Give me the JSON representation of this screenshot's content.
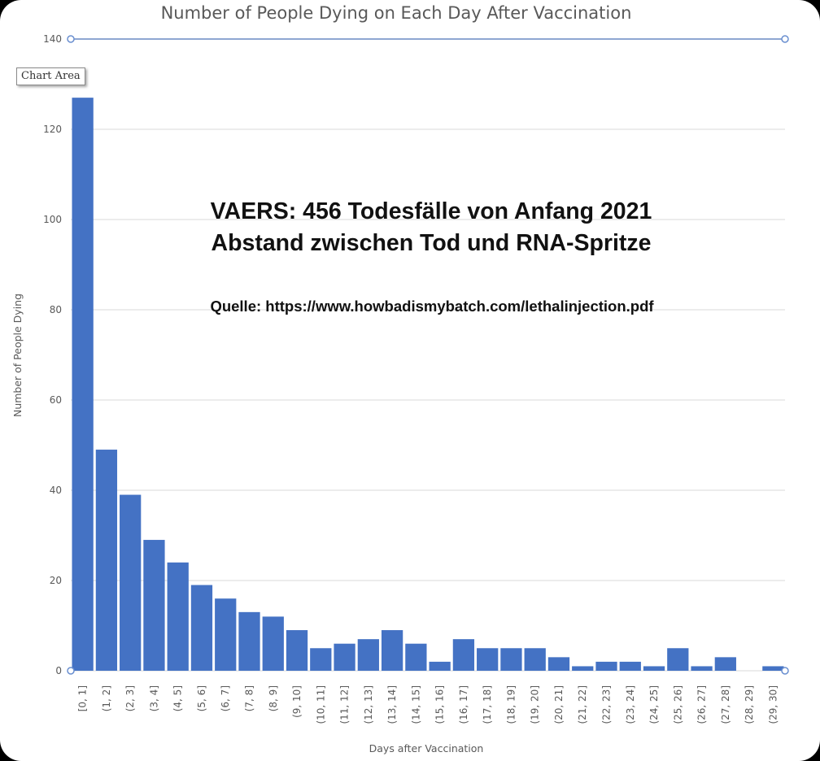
{
  "tooltip": "Chart Area",
  "chart_data": {
    "type": "bar",
    "title": "Number of People Dying on Each Day After Vaccination",
    "xlabel": "Days after Vaccination",
    "ylabel": "Number of People Dying",
    "ylim": [
      0,
      140
    ],
    "yticks": [
      0,
      20,
      40,
      60,
      80,
      100,
      120,
      140
    ],
    "grid": true,
    "bar_color": "#4472c4",
    "categories": [
      "[0, 1]",
      "(1, 2]",
      "(2, 3]",
      "(3, 4]",
      "(4, 5]",
      "(5, 6]",
      "(6, 7]",
      "(7, 8]",
      "(8, 9]",
      "(9, 10]",
      "(10, 11]",
      "(11, 12]",
      "(12, 13]",
      "(13, 14]",
      "(14, 15]",
      "(15, 16]",
      "(16, 17]",
      "(17, 18]",
      "(18, 19]",
      "(19, 20]",
      "(20, 21]",
      "(21, 22]",
      "(22, 23]",
      "(23, 24]",
      "(24, 25]",
      "(25, 26]",
      "(26, 27]",
      "(27, 28]",
      "(28, 29]",
      "(29, 30]"
    ],
    "values": [
      127,
      49,
      39,
      29,
      24,
      19,
      16,
      13,
      12,
      9,
      5,
      6,
      7,
      9,
      6,
      2,
      7,
      5,
      5,
      5,
      3,
      1,
      2,
      2,
      1,
      5,
      1,
      3,
      0,
      1
    ],
    "annotations": {
      "line1": "VAERS: 456 Todesfälle von Anfang 2021",
      "line2": "Abstand zwischen Tod und RNA-Spritze",
      "source": "Quelle: https://www.howbadismybatch.com/lethalinjection.pdf"
    }
  }
}
